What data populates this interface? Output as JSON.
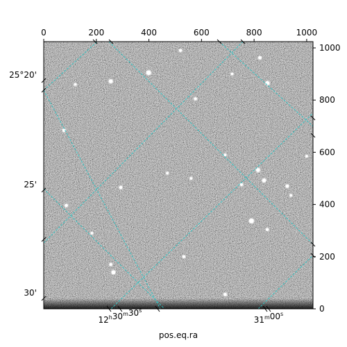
{
  "chart_data": {
    "type": "heatmap",
    "image_size": [
      1024,
      1024
    ],
    "top_axis": {
      "ticks": [
        0,
        200,
        400,
        600,
        800,
        1000
      ],
      "tick_labels": [
        "0",
        "200",
        "400",
        "600",
        "800",
        "1000"
      ],
      "range": [
        0,
        1024
      ]
    },
    "right_axis": {
      "ticks": [
        0,
        200,
        400,
        600,
        800,
        1000
      ],
      "tick_labels": [
        "0",
        "200",
        "400",
        "600",
        "800",
        "1000"
      ],
      "range": [
        0,
        1024
      ]
    },
    "bottom_axis": {
      "label": "pos.eq.ra",
      "ticks": [
        {
          "pixel": 290,
          "hours": "12",
          "minutes": "30",
          "seconds": "30"
        },
        {
          "pixel": 855,
          "minutes": "31",
          "seconds": "00"
        }
      ],
      "hour_unit": "h",
      "minute_unit": "m",
      "second_unit": "s"
    },
    "left_axis": {
      "ticks": [
        {
          "pixel": 875,
          "label": "25°20'"
        },
        {
          "pixel": 455,
          "label": "25'"
        },
        {
          "pixel": 40,
          "label": "30'"
        }
      ]
    },
    "overlay_grid": {
      "color": "#2ec4c4",
      "style": "dashed",
      "on": true
    },
    "colormap": "gray",
    "stars": [
      {
        "x": 399,
        "y": 905,
        "brightness": 1.0
      },
      {
        "x": 255,
        "y": 872,
        "brightness": 0.8
      },
      {
        "x": 851,
        "y": 865,
        "brightness": 0.8
      },
      {
        "x": 822,
        "y": 962,
        "brightness": 0.6
      },
      {
        "x": 520,
        "y": 990,
        "brightness": 0.5
      },
      {
        "x": 77,
        "y": 684,
        "brightness": 0.6
      },
      {
        "x": 577,
        "y": 805,
        "brightness": 0.5
      },
      {
        "x": 815,
        "y": 532,
        "brightness": 0.8
      },
      {
        "x": 838,
        "y": 492,
        "brightness": 0.8
      },
      {
        "x": 926,
        "y": 470,
        "brightness": 0.6
      },
      {
        "x": 752,
        "y": 476,
        "brightness": 0.5
      },
      {
        "x": 293,
        "y": 465,
        "brightness": 0.6
      },
      {
        "x": 86,
        "y": 396,
        "brightness": 0.6
      },
      {
        "x": 790,
        "y": 337,
        "brightness": 1.0
      },
      {
        "x": 850,
        "y": 304,
        "brightness": 0.5
      },
      {
        "x": 265,
        "y": 140,
        "brightness": 0.8
      },
      {
        "x": 255,
        "y": 170,
        "brightness": 0.5
      },
      {
        "x": 533,
        "y": 200,
        "brightness": 0.5
      },
      {
        "x": 690,
        "y": 55,
        "brightness": 0.6
      },
      {
        "x": 183,
        "y": 290,
        "brightness": 0.4
      },
      {
        "x": 1000,
        "y": 585,
        "brightness": 0.4
      },
      {
        "x": 940,
        "y": 435,
        "brightness": 0.4
      },
      {
        "x": 470,
        "y": 520,
        "brightness": 0.4
      },
      {
        "x": 560,
        "y": 500,
        "brightness": 0.4
      },
      {
        "x": 716,
        "y": 900,
        "brightness": 0.4
      },
      {
        "x": 120,
        "y": 860,
        "brightness": 0.4
      },
      {
        "x": 690,
        "y": 590,
        "brightness": 0.4
      }
    ]
  }
}
